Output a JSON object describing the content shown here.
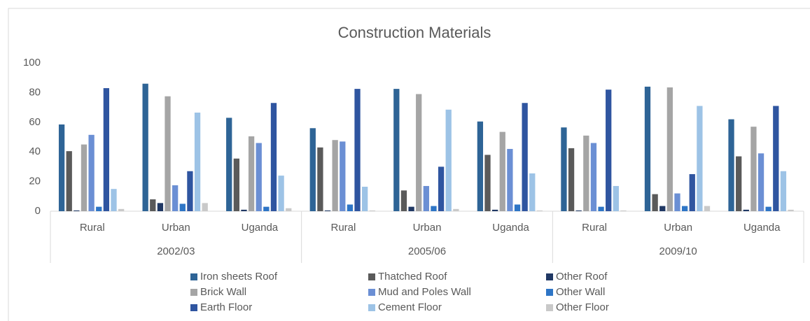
{
  "chart_data": {
    "type": "bar",
    "title": "Construction Materials",
    "categories": [
      "Rural",
      "Urban",
      "Uganda",
      "Rural",
      "Urban",
      "Uganda",
      "Rural",
      "Urban",
      "Uganda"
    ],
    "groups": [
      "2002/03",
      "2005/06",
      "2009/10"
    ],
    "series": [
      {
        "name": "Iron sheets Roof",
        "color": "#2e6496",
        "values": [
          58.5,
          86,
          63,
          56,
          82.5,
          60.5,
          56.5,
          84,
          62
        ]
      },
      {
        "name": "Thatched Roof",
        "color": "#5a5a5a",
        "values": [
          40.5,
          8,
          35.5,
          43,
          14,
          38,
          42.5,
          11.5,
          37
        ]
      },
      {
        "name": "Other Roof",
        "color": "#203864",
        "values": [
          0.5,
          5.5,
          1,
          0.5,
          3,
          1,
          0.5,
          3.5,
          1
        ]
      },
      {
        "name": "Brick Wall",
        "color": "#a5a5a5",
        "values": [
          45,
          77.5,
          50.5,
          48,
          79,
          53.5,
          51,
          83.5,
          57
        ]
      },
      {
        "name": "Mud and Poles Wall",
        "color": "#6b8fd4",
        "values": [
          51.5,
          17.5,
          46,
          47,
          17,
          42,
          46,
          12,
          39
        ]
      },
      {
        "name": "Other Wall",
        "color": "#2e75c6",
        "values": [
          3,
          5,
          3,
          4.5,
          3.5,
          4.5,
          3,
          3.5,
          3
        ]
      },
      {
        "name": "Earth Floor",
        "color": "#2f55a0",
        "values": [
          83,
          27,
          73,
          82.5,
          30,
          73,
          82,
          25,
          71
        ]
      },
      {
        "name": "Cement Floor",
        "color": "#9dc3e6",
        "values": [
          15,
          66.5,
          24,
          16.5,
          68.5,
          25.5,
          17,
          71,
          27
        ]
      },
      {
        "name": "Other Floor",
        "color": "#c9c9c9",
        "values": [
          1.5,
          5.5,
          2,
          0.5,
          1.5,
          0.5,
          0.5,
          3.5,
          1
        ]
      }
    ],
    "ylim": [
      0,
      100
    ],
    "yticks": [
      0,
      20,
      40,
      60,
      80,
      100
    ],
    "grid": false
  }
}
